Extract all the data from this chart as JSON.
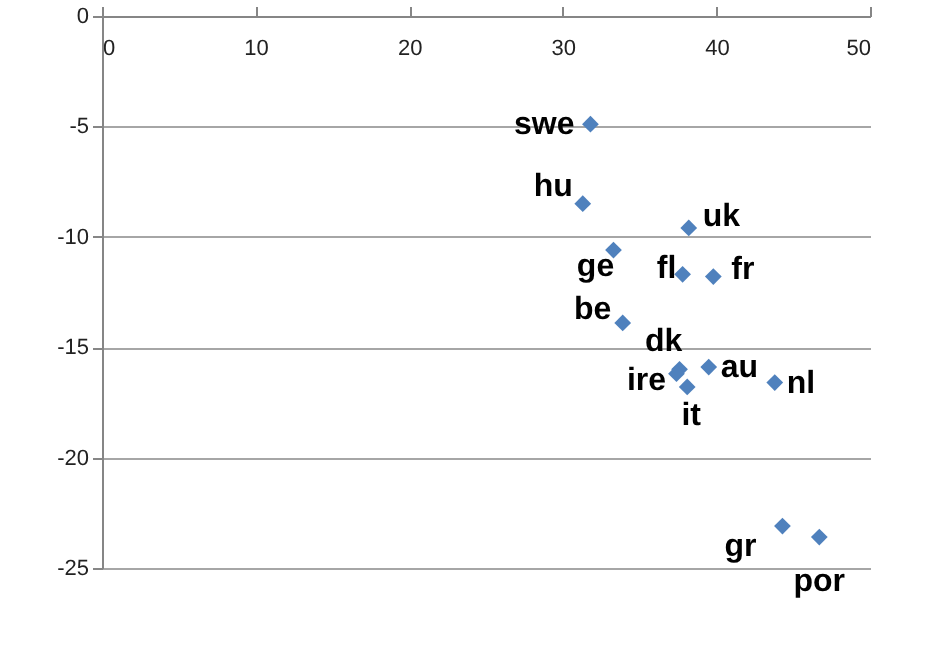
{
  "chart_data": {
    "type": "scatter",
    "marker": "diamond",
    "grid": "y",
    "x": [
      31.8,
      31.3,
      38.2,
      33.3,
      37.8,
      39.8,
      33.9,
      37.6,
      37.4,
      38.1,
      39.5,
      43.8,
      44.3,
      46.7
    ],
    "series": [
      {
        "color": "#4f81bd",
        "values": [
          -4.9,
          -8.5,
          -9.6,
          -10.6,
          -11.7,
          -11.8,
          -13.9,
          -16.0,
          -16.2,
          -16.8,
          -15.9,
          -16.6,
          -23.1,
          -23.6
        ],
        "value_labels": [
          "swe",
          "hu",
          "uk",
          "ge",
          "fl",
          "fr",
          "be",
          "dk",
          "ire",
          "it",
          "au",
          "nl",
          "gr",
          "por"
        ]
      }
    ],
    "xlim": [
      0,
      50
    ],
    "xticks": [
      0,
      10,
      20,
      30,
      40,
      50
    ],
    "ylim": [
      -25,
      0
    ],
    "yticks": [
      0,
      -5,
      -10,
      -15,
      -20,
      -25
    ]
  }
}
